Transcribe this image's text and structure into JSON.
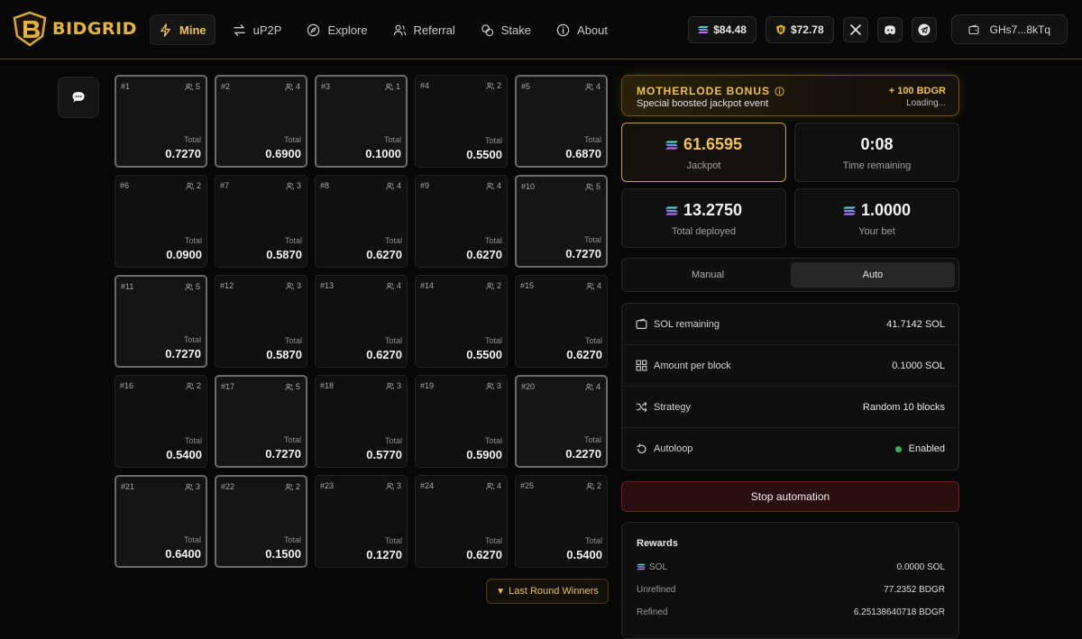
{
  "brand": {
    "name": "BIDGRID"
  },
  "nav": [
    {
      "label": "Mine",
      "icon": "lightning-icon",
      "active": true
    },
    {
      "label": "uP2P",
      "icon": "swap-icon"
    },
    {
      "label": "Explore",
      "icon": "compass-icon"
    },
    {
      "label": "Referral",
      "icon": "users-icon"
    },
    {
      "label": "Stake",
      "icon": "coins-icon"
    },
    {
      "label": "About",
      "icon": "info-icon"
    }
  ],
  "header": {
    "sol_balance": "$84.48",
    "token_balance": "$72.78",
    "wallet": "GHs7...8kTq"
  },
  "grid": {
    "total_label": "Total",
    "blocks": [
      {
        "num": "#1",
        "players": "5",
        "total": "0.7270",
        "hl": true
      },
      {
        "num": "#2",
        "players": "4",
        "total": "0.6900",
        "hl": true
      },
      {
        "num": "#3",
        "players": "1",
        "total": "0.1000",
        "hl": true
      },
      {
        "num": "#4",
        "players": "2",
        "total": "0.5500",
        "hl": false
      },
      {
        "num": "#5",
        "players": "4",
        "total": "0.6870",
        "hl": true
      },
      {
        "num": "#6",
        "players": "2",
        "total": "0.0900",
        "hl": false
      },
      {
        "num": "#7",
        "players": "3",
        "total": "0.5870",
        "hl": false
      },
      {
        "num": "#8",
        "players": "4",
        "total": "0.6270",
        "hl": false
      },
      {
        "num": "#9",
        "players": "4",
        "total": "0.6270",
        "hl": false
      },
      {
        "num": "#10",
        "players": "5",
        "total": "0.7270",
        "hl": true
      },
      {
        "num": "#11",
        "players": "5",
        "total": "0.7270",
        "hl": true
      },
      {
        "num": "#12",
        "players": "3",
        "total": "0.5870",
        "hl": false
      },
      {
        "num": "#13",
        "players": "4",
        "total": "0.6270",
        "hl": false
      },
      {
        "num": "#14",
        "players": "2",
        "total": "0.5500",
        "hl": false
      },
      {
        "num": "#15",
        "players": "4",
        "total": "0.6270",
        "hl": false
      },
      {
        "num": "#16",
        "players": "2",
        "total": "0.5400",
        "hl": false
      },
      {
        "num": "#17",
        "players": "5",
        "total": "0.7270",
        "hl": true
      },
      {
        "num": "#18",
        "players": "3",
        "total": "0.5770",
        "hl": false
      },
      {
        "num": "#19",
        "players": "3",
        "total": "0.5900",
        "hl": false
      },
      {
        "num": "#20",
        "players": "4",
        "total": "0.2270",
        "hl": true
      },
      {
        "num": "#21",
        "players": "3",
        "total": "0.6400",
        "hl": true
      },
      {
        "num": "#22",
        "players": "2",
        "total": "0.1500",
        "hl": true
      },
      {
        "num": "#23",
        "players": "3",
        "total": "0.1270",
        "hl": false
      },
      {
        "num": "#24",
        "players": "4",
        "total": "0.6270",
        "hl": false
      },
      {
        "num": "#25",
        "players": "2",
        "total": "0.5400",
        "hl": false
      }
    ],
    "winners_label": "Last Round Winners"
  },
  "bonus": {
    "title": "MOTHERLODE BONUS",
    "subtitle": "Special boosted jackpot event",
    "amount": "+ 100 BDGR",
    "status": "Loading..."
  },
  "stats": {
    "jackpot_value": "61.6595",
    "jackpot_label": "Jackpot",
    "time_value": "0:08",
    "time_label": "Time remaining",
    "deployed_value": "13.2750",
    "deployed_label": "Total deployed",
    "bet_value": "1.0000",
    "bet_label": "Your bet"
  },
  "mode": {
    "manual": "Manual",
    "auto": "Auto",
    "selected": "auto"
  },
  "settings": {
    "sol_remaining_label": "SOL remaining",
    "sol_remaining_value": "41.7142 SOL",
    "amount_label": "Amount per block",
    "amount_value": "0.1000 SOL",
    "strategy_label": "Strategy",
    "strategy_value": "Random 10 blocks",
    "autoloop_label": "Autoloop",
    "autoloop_value": "Enabled"
  },
  "stop_label": "Stop automation",
  "rewards": {
    "title": "Rewards",
    "sol_label": "SOL",
    "sol_value": "0.0000 SOL",
    "unrefined_label": "Unrefined",
    "unrefined_value": "77.2352 BDGR",
    "refined_label": "Refined",
    "refined_value": "6.25138640718 BDGR"
  },
  "colors": {
    "accent_gold": "#f0c24b",
    "danger": "#7a1c1c",
    "success": "#3fae5a"
  }
}
